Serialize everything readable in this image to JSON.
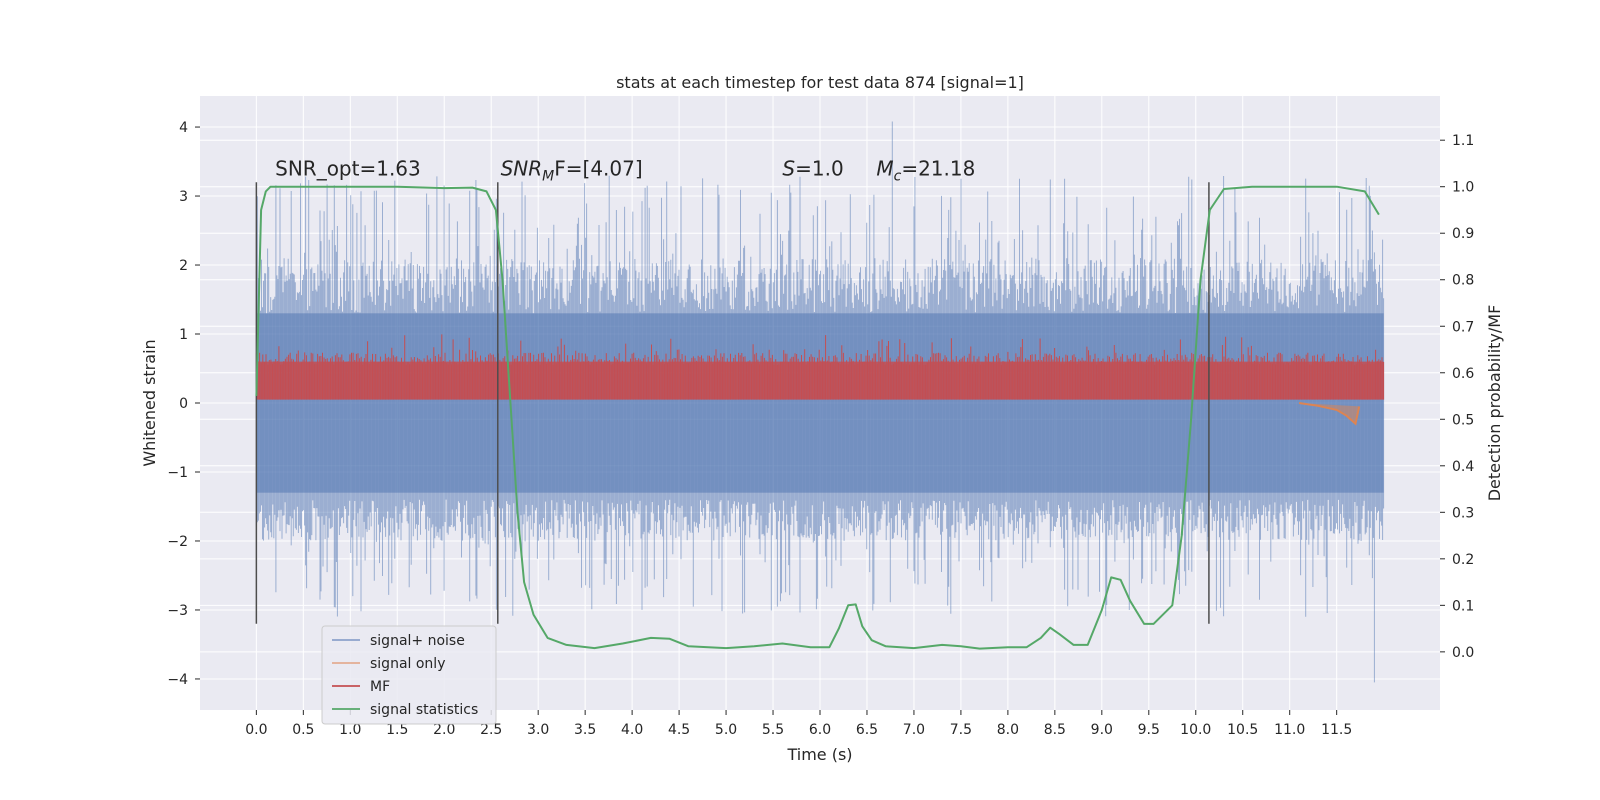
{
  "chart_data": {
    "type": "line",
    "title": "stats at each timestep for test data 874 [signal=1]",
    "xlabel": "Time (s)",
    "ylabel": "Whitened strain",
    "y2label": "Detection probability/MF",
    "xlim": [
      -0.6,
      12.6
    ],
    "ylim": [
      -4.45,
      4.45
    ],
    "y2lim": [
      -0.125,
      1.195
    ],
    "x_ticks": [
      0.0,
      0.5,
      1.0,
      1.5,
      2.0,
      2.5,
      3.0,
      3.5,
      4.0,
      4.5,
      5.0,
      5.5,
      6.0,
      6.5,
      7.0,
      7.5,
      8.0,
      8.5,
      9.0,
      9.5,
      10.0,
      10.5,
      11.0,
      11.5
    ],
    "x_tick_labels": [
      "0.0",
      "0.5",
      "1.0",
      "1.5",
      "2.0",
      "2.5",
      "3.0",
      "3.5",
      "4.0",
      "4.5",
      "5.0",
      "5.5",
      "6.0",
      "6.5",
      "7.0",
      "7.5",
      "8.0",
      "8.5",
      "9.0",
      "9.5",
      "10.0",
      "10.5",
      "11.0",
      "11.5"
    ],
    "y_ticks": [
      -4,
      -3,
      -2,
      -1,
      0,
      1,
      2,
      3,
      4
    ],
    "y_tick_labels": [
      "−4",
      "−3",
      "−2",
      "−1",
      "0",
      "1",
      "2",
      "3",
      "4"
    ],
    "y2_ticks": [
      0.0,
      0.1,
      0.2,
      0.3,
      0.4,
      0.5,
      0.6,
      0.7,
      0.8,
      0.9,
      1.0,
      1.1
    ],
    "y2_tick_labels": [
      "0.0",
      "0.1",
      "0.2",
      "0.3",
      "0.4",
      "0.5",
      "0.6",
      "0.7",
      "0.8",
      "0.9",
      "1.0",
      "1.1"
    ],
    "grid": true,
    "legend_position": "lower-left",
    "series": [
      {
        "name": "signal+ noise",
        "color": "#4c72b0",
        "axis": "left",
        "x_range": [
          0.0,
          12.0
        ],
        "typical_range": [
          -1.3,
          1.3
        ],
        "min": -4.05,
        "max": 4.08
      },
      {
        "name": "signal only",
        "color": "#dd8452",
        "axis": "left",
        "x": [
          11.1,
          11.3,
          11.5,
          11.6,
          11.7,
          11.74
        ],
        "y": [
          0.0,
          -0.04,
          -0.1,
          -0.18,
          -0.3,
          -0.05
        ]
      },
      {
        "name": "MF",
        "color": "#c44e52",
        "axis": "left",
        "x_range": [
          0.0,
          12.0
        ],
        "typical_range": [
          0.05,
          0.6
        ],
        "max": 1.0
      },
      {
        "name": "signal statistics",
        "color": "#55a868",
        "axis": "right",
        "x": [
          0.0,
          0.05,
          0.1,
          0.15,
          0.3,
          0.6,
          1.0,
          1.5,
          2.0,
          2.3,
          2.45,
          2.55,
          2.62,
          2.7,
          2.78,
          2.85,
          2.95,
          3.1,
          3.3,
          3.6,
          3.9,
          4.2,
          4.4,
          4.6,
          5.0,
          5.3,
          5.6,
          5.9,
          6.1,
          6.2,
          6.3,
          6.38,
          6.45,
          6.55,
          6.7,
          7.0,
          7.3,
          7.5,
          7.7,
          8.0,
          8.2,
          8.35,
          8.45,
          8.55,
          8.7,
          8.85,
          9.0,
          9.1,
          9.2,
          9.3,
          9.45,
          9.55,
          9.75,
          9.85,
          9.95,
          10.05,
          10.15,
          10.3,
          10.6,
          11.0,
          11.5,
          11.8,
          11.95
        ],
        "y": [
          0.55,
          0.95,
          0.99,
          1.0,
          1.0,
          1.0,
          1.0,
          1.0,
          0.997,
          0.998,
          0.99,
          0.95,
          0.8,
          0.55,
          0.3,
          0.15,
          0.08,
          0.03,
          0.015,
          0.008,
          0.018,
          0.03,
          0.028,
          0.012,
          0.008,
          0.012,
          0.018,
          0.01,
          0.01,
          0.05,
          0.1,
          0.102,
          0.055,
          0.025,
          0.012,
          0.008,
          0.015,
          0.012,
          0.007,
          0.01,
          0.01,
          0.03,
          0.052,
          0.038,
          0.015,
          0.015,
          0.09,
          0.16,
          0.155,
          0.11,
          0.06,
          0.06,
          0.1,
          0.25,
          0.5,
          0.8,
          0.95,
          0.995,
          1.0,
          1.0,
          1.0,
          0.99,
          0.94
        ]
      }
    ],
    "vlines": [
      {
        "x": 0.0,
        "y": [
          -3.2,
          3.2
        ],
        "color": "#4d4d4d"
      },
      {
        "x": 2.57,
        "y": [
          -3.2,
          3.2
        ],
        "color": "#4d4d4d"
      },
      {
        "x": 10.14,
        "y": [
          -3.2,
          3.2
        ],
        "color": "#4d4d4d"
      }
    ],
    "annotations": [
      {
        "text": "SNR_opt=1.63",
        "x": 0.2,
        "y": 3.3
      },
      {
        "text": "SNR_MF=[4.07]",
        "x": 2.6,
        "y": 3.3,
        "main": "SNR",
        "sub": "M",
        "rest": "F=[4.07]"
      },
      {
        "text": "S=1.0",
        "x": 5.6,
        "y": 3.3,
        "main": "S",
        "rest": "=1.0"
      },
      {
        "text": "M_c=21.18",
        "x": 6.6,
        "y": 3.3,
        "main": "M",
        "sub": "c",
        "rest": "=21.18"
      }
    ]
  }
}
